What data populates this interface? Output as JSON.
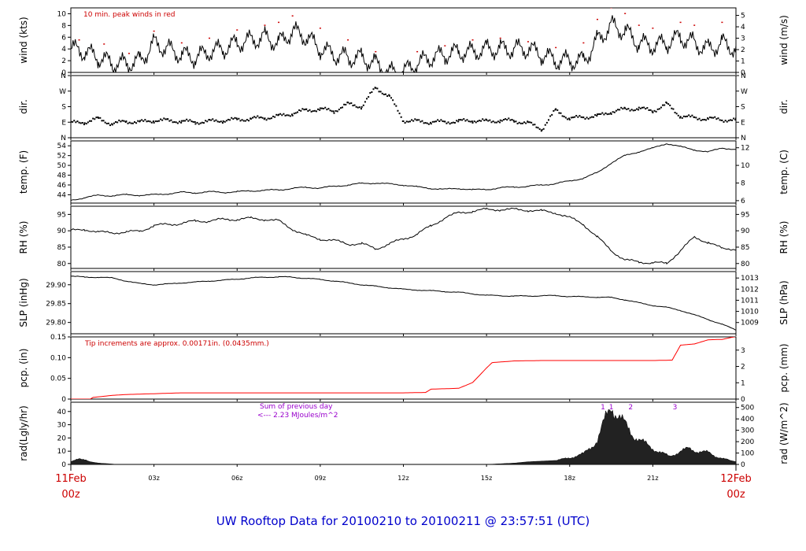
{
  "title": "UW Rooftop Data for 20100210  to  20100211 @ 23:57:51  (UTC)",
  "colors": {
    "line": "#000000",
    "precip": "#ff0000",
    "peak": "#cc0000",
    "note_red": "#cc0000",
    "note_purple": "#9900cc",
    "title": "#0000cc",
    "fill": "#222222"
  },
  "x_axis": {
    "range_hours": [
      0,
      24
    ],
    "ticks": [
      {
        "hour": 0,
        "label": "11Feb",
        "sub": "00z",
        "major": true
      },
      {
        "hour": 3,
        "label": "03z",
        "major": false
      },
      {
        "hour": 6,
        "label": "06z",
        "major": false
      },
      {
        "hour": 9,
        "label": "09z",
        "major": false
      },
      {
        "hour": 12,
        "label": "12z",
        "major": false
      },
      {
        "hour": 15,
        "label": "15z",
        "major": false
      },
      {
        "hour": 18,
        "label": "18z",
        "major": false
      },
      {
        "hour": 21,
        "label": "21z",
        "major": false
      },
      {
        "hour": 24,
        "label": "12Feb",
        "sub": "00z",
        "major": true
      }
    ]
  },
  "chart_data": [
    {
      "type": "line",
      "key": "wind",
      "ylabel_left": "wind (kts)",
      "ylabel_right": "wind (m/s)",
      "ylim": [
        0,
        11
      ],
      "ticks_left": [
        0,
        2,
        4,
        6,
        8,
        10
      ],
      "ticks_right": [
        {
          "v": 0,
          "label": "0"
        },
        {
          "v": 1.944,
          "label": "1"
        },
        {
          "v": 3.888,
          "label": "2"
        },
        {
          "v": 5.832,
          "label": "3"
        },
        {
          "v": 7.776,
          "label": "4"
        },
        {
          "v": 9.72,
          "label": "5"
        }
      ],
      "annotation": "10 min. peak winds in red",
      "series": [
        {
          "x": [
            0,
            0.5,
            1,
            1.5,
            2,
            2.5,
            3,
            3.5,
            4,
            4.5,
            5,
            5.5,
            6,
            6.5,
            7,
            7.5,
            8,
            8.5,
            9,
            9.5,
            10,
            10.5,
            11,
            11.5,
            12,
            12.5,
            13,
            13.5,
            14,
            14.5,
            15,
            15.5,
            16,
            16.5,
            17,
            17.5,
            18,
            18.5,
            19,
            19.5,
            20,
            20.5,
            21,
            21.5,
            22,
            22.5,
            23,
            23.5,
            24
          ],
          "y": [
            4,
            3.5,
            2.5,
            1.5,
            1.5,
            2,
            5,
            4,
            3,
            2.5,
            3.5,
            4,
            5,
            5.5,
            6,
            5,
            7,
            6,
            4,
            3,
            2.5,
            2.5,
            1.5,
            0,
            0,
            1.5,
            2.5,
            3,
            3.5,
            3.5,
            4,
            4,
            4,
            4,
            3,
            2,
            2,
            2,
            5.5,
            8,
            7,
            5,
            4.5,
            5,
            6,
            5,
            4,
            5,
            4
          ]
        },
        {
          "name": "10 min. peak winds",
          "x": [
            0.3,
            1.2,
            2.1,
            3.0,
            4.0,
            5.0,
            6.0,
            7.0,
            7.5,
            8.0,
            9.0,
            10.0,
            11.0,
            12.5,
            13.5,
            14.5,
            15.5,
            16.5,
            17.5,
            18.5,
            19.0,
            19.5,
            20.0,
            20.5,
            21.0,
            22.0,
            22.5,
            23.0,
            23.5
          ],
          "y": [
            5.5,
            4.8,
            3.2,
            7.0,
            5.0,
            5.8,
            7.2,
            8.0,
            8.5,
            9.6,
            7.5,
            5.5,
            3.5,
            3.5,
            4.5,
            5.5,
            5.8,
            5.2,
            4.2,
            5.0,
            9.0,
            11.0,
            10.0,
            8.0,
            7.5,
            8.5,
            8.0,
            11.2,
            8.5
          ]
        }
      ]
    },
    {
      "type": "scatter",
      "key": "dir",
      "ylabel_left": "dir.",
      "ylabel_right": "dir.",
      "ylim": [
        0,
        360
      ],
      "ticks_left": [
        {
          "v": 0,
          "label": "N"
        },
        {
          "v": 90,
          "label": "E"
        },
        {
          "v": 180,
          "label": "S"
        },
        {
          "v": 270,
          "label": "W"
        },
        {
          "v": 360,
          "label": "N"
        }
      ],
      "ticks_right": [
        {
          "v": 0,
          "label": "N"
        },
        {
          "v": 90,
          "label": "E"
        },
        {
          "v": 180,
          "label": "S"
        },
        {
          "v": 270,
          "label": "W"
        },
        {
          "v": 360,
          "label": "N"
        }
      ],
      "series": [
        {
          "x": [
            0,
            0.5,
            1,
            1.5,
            2,
            2.5,
            3,
            3.5,
            4,
            4.5,
            5,
            5.5,
            6,
            6.5,
            7,
            7.5,
            8,
            8.5,
            9,
            9.5,
            10,
            10.5,
            11,
            11.5,
            12,
            12.5,
            13,
            13.5,
            14,
            14.5,
            15,
            15.5,
            16,
            16.5,
            17,
            17.5,
            18,
            18.5,
            19,
            19.5,
            20,
            20.5,
            21,
            21.5,
            22,
            22.5,
            23,
            23.5,
            24
          ],
          "y": [
            85,
            90,
            110,
            80,
            95,
            90,
            100,
            100,
            95,
            90,
            95,
            100,
            105,
            110,
            115,
            125,
            140,
            160,
            165,
            155,
            195,
            180,
            290,
            240,
            100,
            95,
            90,
            92,
            95,
            100,
            95,
            100,
            98,
            85,
            50,
            160,
            110,
            120,
            125,
            150,
            165,
            170,
            155,
            195,
            125,
            115,
            110,
            105,
            100
          ]
        }
      ]
    },
    {
      "type": "line",
      "key": "temp",
      "ylabel_left": "temp. (F)",
      "ylabel_right": "temp. (C)",
      "ylim": [
        42.3,
        55.0
      ],
      "ticks_left": [
        44,
        46,
        48,
        50,
        52,
        54
      ],
      "ticks_right": [
        {
          "v": 42.8,
          "label": "6"
        },
        {
          "v": 46.4,
          "label": "8"
        },
        {
          "v": 50.0,
          "label": "10"
        },
        {
          "v": 53.6,
          "label": "12"
        }
      ],
      "series": [
        {
          "x": [
            0,
            0.5,
            1,
            1.5,
            2,
            2.5,
            3,
            3.5,
            4,
            4.5,
            5,
            5.5,
            6,
            6.5,
            7,
            7.5,
            8,
            8.5,
            9,
            9.5,
            10,
            10.5,
            11,
            11.5,
            12,
            12.5,
            13,
            13.5,
            14,
            14.5,
            15,
            15.5,
            16,
            16.5,
            17,
            17.5,
            18,
            18.5,
            19,
            19.5,
            20,
            20.5,
            21,
            21.5,
            22,
            22.5,
            23,
            23.5,
            24
          ],
          "y": [
            42.9,
            43.4,
            43.9,
            43.8,
            44.0,
            43.9,
            44.0,
            44.2,
            44.5,
            44.4,
            44.6,
            44.5,
            44.6,
            44.8,
            44.9,
            45.0,
            45.3,
            45.5,
            45.4,
            45.7,
            46.0,
            46.3,
            46.4,
            46.2,
            46.0,
            45.6,
            45.3,
            45.1,
            45.3,
            45.0,
            45.1,
            45.4,
            45.6,
            45.7,
            46.0,
            46.3,
            46.8,
            47.4,
            48.5,
            50.5,
            52.0,
            52.8,
            53.5,
            54.5,
            53.8,
            53.2,
            52.7,
            53.6,
            53.2
          ]
        }
      ]
    },
    {
      "type": "line",
      "key": "rh",
      "ylabel_left": "RH (%)",
      "ylabel_right": "RH (%)",
      "ylim": [
        78.5,
        97.5
      ],
      "ticks_left": [
        80,
        85,
        90,
        95
      ],
      "ticks_right": [
        {
          "v": 80,
          "label": "80"
        },
        {
          "v": 85,
          "label": "85"
        },
        {
          "v": 90,
          "label": "90"
        },
        {
          "v": 95,
          "label": "95"
        }
      ],
      "series": [
        {
          "x": [
            0,
            0.5,
            1,
            1.5,
            2,
            2.5,
            3,
            3.5,
            4,
            4.5,
            5,
            5.5,
            6,
            6.5,
            7,
            7.5,
            8,
            8.5,
            9,
            9.5,
            10,
            10.5,
            11,
            11.5,
            12,
            12.5,
            13,
            13.5,
            14,
            14.5,
            15,
            15.5,
            16,
            16.5,
            17,
            17.5,
            18,
            18.5,
            19,
            19.5,
            20,
            20.5,
            21,
            21.5,
            22,
            22.5,
            23,
            23.5,
            24
          ],
          "y": [
            90,
            90.5,
            89.5,
            89.5,
            89.5,
            90,
            91.5,
            92,
            92.2,
            93,
            93,
            93.5,
            93.5,
            93.8,
            93.5,
            93,
            90.5,
            88.5,
            87.5,
            87,
            86,
            86,
            84.5,
            86,
            87.5,
            89,
            91.5,
            94,
            95.5,
            96,
            96.5,
            96.5,
            96.5,
            96.3,
            96,
            95.5,
            94,
            92,
            88,
            84,
            81,
            80.5,
            80.2,
            80.0,
            84,
            88,
            86.5,
            84.5,
            84.5
          ]
        }
      ]
    },
    {
      "type": "line",
      "key": "slp",
      "ylabel_left": "SLP (inHg)",
      "ylabel_right": "SLP (hPa)",
      "ylim": [
        29.77,
        29.935
      ],
      "ticks_left": [
        {
          "v": 29.8,
          "label": "29.80"
        },
        {
          "v": 29.85,
          "label": "29.85"
        },
        {
          "v": 29.9,
          "label": "29.90"
        }
      ],
      "ticks_right": [
        {
          "v": 29.7998,
          "label": "1009"
        },
        {
          "v": 29.8293,
          "label": "1010"
        },
        {
          "v": 29.8589,
          "label": "1011"
        },
        {
          "v": 29.8884,
          "label": "1012"
        },
        {
          "v": 29.9179,
          "label": "1013"
        }
      ],
      "series": [
        {
          "x": [
            0,
            0.5,
            1,
            1.5,
            2,
            2.5,
            3,
            3.5,
            4,
            4.5,
            5,
            5.5,
            6,
            6.5,
            7,
            7.5,
            8,
            8.5,
            9,
            9.5,
            10,
            10.5,
            11,
            11.5,
            12,
            12.5,
            13,
            13.5,
            14,
            14.5,
            15,
            15.5,
            16,
            16.5,
            17,
            17.5,
            18,
            18.5,
            19,
            19.5,
            20,
            20.5,
            21,
            21.5,
            22,
            22.5,
            23,
            23.5,
            24
          ],
          "y": [
            29.923,
            29.92,
            29.92,
            29.918,
            29.91,
            29.903,
            29.9,
            29.902,
            29.905,
            29.907,
            29.91,
            29.912,
            29.915,
            29.918,
            29.92,
            29.921,
            29.92,
            29.917,
            29.914,
            29.91,
            29.905,
            29.9,
            29.896,
            29.892,
            29.888,
            29.886,
            29.884,
            29.882,
            29.88,
            29.876,
            29.872,
            29.871,
            29.87,
            29.87,
            29.871,
            29.871,
            29.869,
            29.868,
            29.867,
            29.866,
            29.86,
            29.852,
            29.845,
            29.84,
            29.832,
            29.82,
            29.808,
            29.795,
            29.78
          ]
        }
      ]
    },
    {
      "type": "line",
      "key": "pcp",
      "ylabel_left": "pcp. (in)",
      "ylabel_right": "pcp. (mm)",
      "ylim": [
        0,
        0.15
      ],
      "ticks_left": [
        {
          "v": 0,
          "label": "0"
        },
        {
          "v": 0.05,
          "label": "0.05"
        },
        {
          "v": 0.1,
          "label": "0.10"
        },
        {
          "v": 0.15,
          "label": "0.15"
        }
      ],
      "ticks_right": [
        {
          "v": 0,
          "label": "0"
        },
        {
          "v": 0.03937,
          "label": "1"
        },
        {
          "v": 0.07874,
          "label": "2"
        },
        {
          "v": 0.11811,
          "label": "3"
        }
      ],
      "annotation": "Tip increments are approx. 0.00171in. (0.0435mm.)",
      "series": [
        {
          "x": [
            0,
            0.7,
            0.8,
            1.5,
            2,
            3,
            4,
            5,
            6,
            7,
            8,
            9,
            10,
            11,
            12,
            12.8,
            13,
            14,
            14.5,
            15,
            15.2,
            16,
            17,
            18,
            19,
            20,
            21,
            21.7,
            22,
            22.5,
            23,
            23.5,
            24
          ],
          "y": [
            0,
            0,
            0.004,
            0.009,
            0.011,
            0.013,
            0.015,
            0.015,
            0.015,
            0.015,
            0.015,
            0.015,
            0.015,
            0.015,
            0.015,
            0.016,
            0.024,
            0.026,
            0.04,
            0.075,
            0.088,
            0.092,
            0.093,
            0.093,
            0.093,
            0.093,
            0.093,
            0.094,
            0.13,
            0.133,
            0.143,
            0.144,
            0.151
          ]
        }
      ]
    },
    {
      "type": "area",
      "key": "rad",
      "ylabel_left": "rad(Lgly/hr)",
      "ylabel_right": "rad (W/m^2)",
      "ylim": [
        0,
        47
      ],
      "ticks_left": [
        0,
        10,
        20,
        30,
        40
      ],
      "ticks_right": [
        {
          "v": 0,
          "label": "0"
        },
        {
          "v": 8.6,
          "label": "100"
        },
        {
          "v": 17.2,
          "label": "200"
        },
        {
          "v": 25.8,
          "label": "300"
        },
        {
          "v": 34.4,
          "label": "400"
        },
        {
          "v": 43.0,
          "label": "500"
        }
      ],
      "annotation_line1": "Sum of previous day",
      "annotation_line2": "<--- 2.23 MJoules/m^2",
      "markers": [
        {
          "x": 19.2,
          "label": "1"
        },
        {
          "x": 19.5,
          "label": "1"
        },
        {
          "x": 20.2,
          "label": "2"
        },
        {
          "x": 21.8,
          "label": "3"
        }
      ],
      "series": [
        {
          "x": [
            0,
            0.3,
            0.7,
            1.0,
            1.5,
            1.6,
            15.0,
            15.5,
            16.0,
            16.5,
            17.0,
            17.5,
            18.0,
            18.5,
            19.0,
            19.3,
            19.5,
            19.7,
            20.0,
            20.3,
            20.7,
            21.0,
            21.3,
            21.6,
            22.0,
            22.3,
            22.6,
            23.0,
            23.3,
            23.6,
            24.0
          ],
          "y": [
            2,
            5,
            2,
            1,
            0.3,
            0,
            0,
            0.5,
            1,
            2,
            2.5,
            3,
            5,
            8,
            18,
            35,
            45,
            38,
            30,
            22,
            16,
            12,
            9,
            6,
            10,
            12,
            10,
            9,
            6,
            4,
            2
          ]
        }
      ]
    }
  ]
}
